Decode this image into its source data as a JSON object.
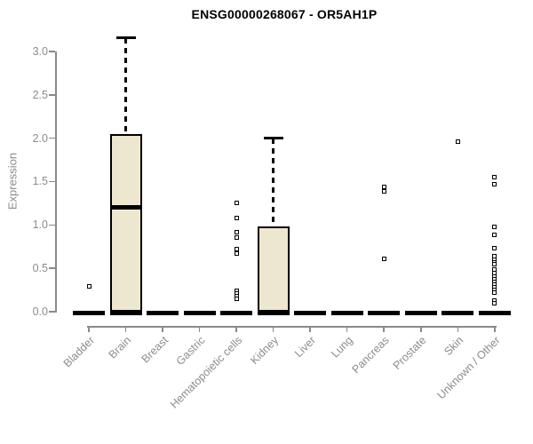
{
  "chart_data": {
    "type": "boxplot",
    "title": "ENSG00000268067 - OR5AH1P",
    "ylabel": "Expression",
    "xlabel": "",
    "ylim": [
      0,
      3.0
    ],
    "yticks": [
      0.0,
      0.5,
      1.0,
      1.5,
      2.0,
      2.5,
      3.0
    ],
    "grid": false,
    "legend": "none",
    "categories": [
      "Bladder",
      "Brain",
      "Breast",
      "Gastric",
      "Hematopoietic cells",
      "Kidney",
      "Liver",
      "Lung",
      "Pancreas",
      "Prostate",
      "Skin",
      "Unknown / Other"
    ],
    "series": [
      {
        "category": "Bladder",
        "q1": 0,
        "median": 0,
        "q3": 0,
        "whisker_low": 0,
        "whisker_high": 0,
        "outliers": [
          0.29
        ]
      },
      {
        "category": "Brain",
        "q1": 0,
        "median": 1.2,
        "q3": 2.05,
        "whisker_low": 0,
        "whisker_high": 3.15,
        "outliers": []
      },
      {
        "category": "Breast",
        "q1": 0,
        "median": 0,
        "q3": 0,
        "whisker_low": 0,
        "whisker_high": 0,
        "outliers": []
      },
      {
        "category": "Gastric",
        "q1": 0,
        "median": 0,
        "q3": 0,
        "whisker_low": 0,
        "whisker_high": 0,
        "outliers": []
      },
      {
        "category": "Hematopoietic cells",
        "q1": 0,
        "median": 0,
        "q3": 0,
        "whisker_low": 0,
        "whisker_high": 0,
        "outliers": [
          1.25,
          1.08,
          0.92,
          0.86,
          0.72,
          0.67,
          0.24,
          0.21,
          0.18,
          0.15
        ]
      },
      {
        "category": "Kidney",
        "q1": 0,
        "median": 0,
        "q3": 0.98,
        "whisker_low": 0,
        "whisker_high": 2.0,
        "outliers": []
      },
      {
        "category": "Liver",
        "q1": 0,
        "median": 0,
        "q3": 0,
        "whisker_low": 0,
        "whisker_high": 0,
        "outliers": []
      },
      {
        "category": "Lung",
        "q1": 0,
        "median": 0,
        "q3": 0,
        "whisker_low": 0,
        "whisker_high": 0,
        "outliers": []
      },
      {
        "category": "Pancreas",
        "q1": 0,
        "median": 0,
        "q3": 0,
        "whisker_low": 0,
        "whisker_high": 0,
        "outliers": [
          1.44,
          1.39,
          0.61
        ]
      },
      {
        "category": "Prostate",
        "q1": 0,
        "median": 0,
        "q3": 0,
        "whisker_low": 0,
        "whisker_high": 0,
        "outliers": []
      },
      {
        "category": "Skin",
        "q1": 0,
        "median": 0,
        "q3": 0,
        "whisker_low": 0,
        "whisker_high": 0,
        "outliers": [
          1.96
        ]
      },
      {
        "category": "Unknown / Other",
        "q1": 0,
        "median": 0,
        "q3": 0,
        "whisker_low": 0,
        "whisker_high": 0,
        "outliers": [
          1.55,
          1.47,
          0.98,
          0.89,
          0.73,
          0.64,
          0.6,
          0.57,
          0.55,
          0.49,
          0.45,
          0.4,
          0.37,
          0.34,
          0.31,
          0.28,
          0.25,
          0.22,
          0.13,
          0.1
        ]
      }
    ],
    "colors": {
      "box_fill": "#ede7cf",
      "box_border": "#000000",
      "axis": "#8a8a8a",
      "tick_label": "#8c8c8c",
      "title": "#000000",
      "background": "#ffffff"
    }
  }
}
